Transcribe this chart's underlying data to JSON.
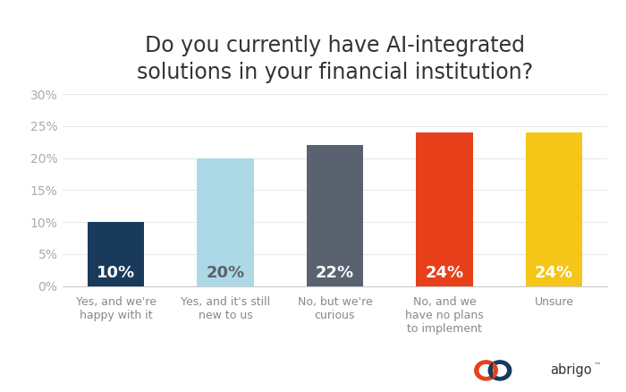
{
  "title": "Do you currently have AI-integrated\nsolutions in your financial institution?",
  "categories": [
    "Yes, and we're\nhappy with it",
    "Yes, and it's still\nnew to us",
    "No, but we're\ncurious",
    "No, and we\nhave no plans\nto implement",
    "Unsure"
  ],
  "values": [
    10,
    20,
    22,
    24,
    24
  ],
  "labels": [
    "10%",
    "20%",
    "22%",
    "24%",
    "24%"
  ],
  "bar_colors": [
    "#1a3a5c",
    "#add8e6",
    "#5a6270",
    "#e8401a",
    "#f5c518"
  ],
  "label_colors": [
    "#ffffff",
    "#5a6270",
    "#ffffff",
    "#ffffff",
    "#ffffff"
  ],
  "ylim": [
    0,
    30
  ],
  "yticks": [
    0,
    5,
    10,
    15,
    20,
    25,
    30
  ],
  "ytick_labels": [
    "0%",
    "5%",
    "10%",
    "15%",
    "20%",
    "25%",
    "30%"
  ],
  "background_color": "#ffffff",
  "title_fontsize": 17,
  "bar_label_fontsize": 13,
  "tick_fontsize": 10,
  "xtick_fontsize": 9,
  "tick_color": "#aaaaaa",
  "logo_orange": "#e8401a",
  "logo_blue": "#1a3a5c"
}
